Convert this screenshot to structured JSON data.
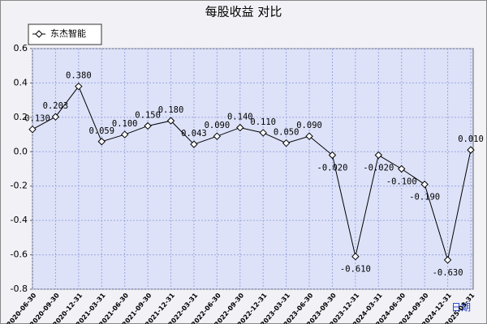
{
  "chart_data": {
    "type": "line",
    "title": "每股收益  对比",
    "x_label": "日期",
    "categories": [
      "2020-06-30",
      "2020-09-30",
      "2020-12-31",
      "2021-03-31",
      "2021-06-30",
      "2021-09-30",
      "2021-12-31",
      "2022-03-31",
      "2022-06-30",
      "2022-09-30",
      "2022-12-31",
      "2023-03-31",
      "2023-06-30",
      "2023-09-30",
      "2023-12-31",
      "2024-03-31",
      "2024-06-30",
      "2024-09-30",
      "2024-12-31",
      "2025-03-31"
    ],
    "series": [
      {
        "name": "东杰智能",
        "color": "#000000",
        "values": [
          0.13,
          0.203,
          0.38,
          0.059,
          0.1,
          0.15,
          0.18,
          0.043,
          0.09,
          0.14,
          0.11,
          0.05,
          0.09,
          -0.02,
          -0.61,
          -0.02,
          -0.1,
          -0.19,
          -0.63,
          0.01
        ],
        "value_labels": [
          "0.130",
          "0.203",
          "0.380",
          "0.059",
          "0.100",
          "0.150",
          "0.180",
          "0.043",
          "0.090",
          "0.140",
          "0.110",
          "0.050",
          "0.090",
          "-0.020",
          "-0.610",
          "-0.020",
          "-0.100",
          "-0.190",
          "-0.630",
          "0.010"
        ]
      }
    ],
    "ylim": [
      -0.8,
      0.6
    ],
    "yticks": [
      -0.8,
      -0.6,
      -0.4,
      -0.2,
      {
        "value": 0,
        "label": "0.0"
      },
      0.2,
      0.4,
      0.6
    ],
    "grid": true,
    "legend": "upper left"
  }
}
